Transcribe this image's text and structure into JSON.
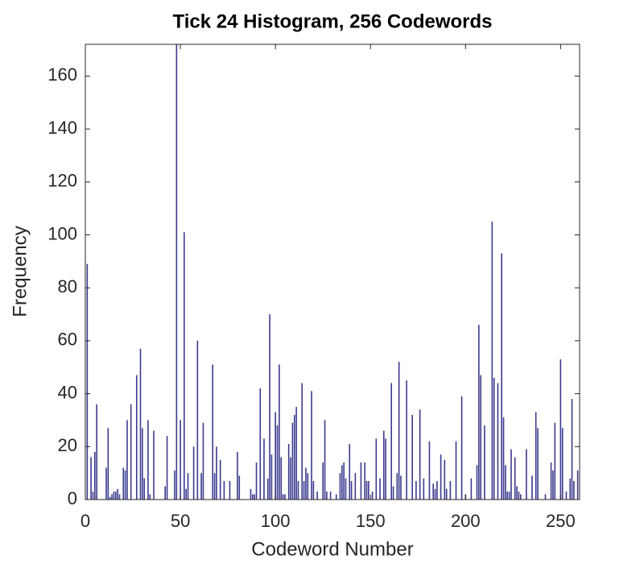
{
  "chart_data": {
    "type": "bar",
    "title": "Tick 24 Histogram, 256 Codewords",
    "xlabel": "Codeword Number",
    "ylabel": "Frequency",
    "color": "#3b3a8e",
    "xlim": [
      0,
      260
    ],
    "ylim": [
      0,
      172
    ],
    "xticks": [
      0,
      50,
      100,
      150,
      200,
      250
    ],
    "yticks": [
      0,
      20,
      40,
      60,
      80,
      100,
      120,
      140,
      160
    ],
    "x": [
      1,
      3,
      4,
      5,
      6,
      11,
      12,
      13,
      14,
      15,
      16,
      17,
      18,
      20,
      21,
      22,
      24,
      27,
      29,
      30,
      31,
      33,
      34,
      36,
      42,
      43,
      47,
      48,
      50,
      52,
      53,
      54,
      57,
      59,
      61,
      62,
      67,
      68,
      69,
      71,
      73,
      76,
      80,
      81,
      87,
      88,
      89,
      90,
      92,
      94,
      96,
      97,
      98,
      100,
      101,
      102,
      103,
      104,
      105,
      107,
      108,
      109,
      110,
      111,
      112,
      114,
      115,
      116,
      117,
      119,
      120,
      122,
      125,
      126,
      127,
      129,
      132,
      134,
      135,
      136,
      137,
      139,
      140,
      142,
      145,
      147,
      148,
      149,
      151,
      153,
      155,
      157,
      158,
      161,
      162,
      164,
      165,
      166,
      169,
      172,
      174,
      176,
      178,
      181,
      183,
      184,
      185,
      187,
      189,
      190,
      192,
      195,
      198,
      200,
      203,
      206,
      207,
      208,
      210,
      214,
      215,
      217,
      219,
      220,
      221,
      222,
      223,
      224,
      226,
      227,
      228,
      229,
      232,
      235,
      237,
      238,
      242,
      245,
      246,
      247,
      250,
      251,
      253,
      255,
      256,
      257,
      259
    ],
    "values": [
      89,
      16,
      3,
      18,
      36,
      12,
      27,
      1,
      2,
      3,
      3,
      4,
      2,
      12,
      11,
      30,
      36,
      47,
      57,
      27,
      8,
      30,
      2,
      26,
      5,
      24,
      11,
      172,
      30,
      101,
      4,
      10,
      20,
      60,
      10,
      29,
      51,
      10,
      20,
      15,
      7,
      7,
      18,
      9,
      4,
      2,
      2,
      14,
      42,
      23,
      8,
      70,
      17,
      33,
      28,
      51,
      16,
      2,
      2,
      21,
      16,
      29,
      32,
      35,
      7,
      44,
      7,
      12,
      10,
      41,
      7,
      3,
      14,
      30,
      3,
      3,
      2,
      10,
      13,
      14,
      8,
      21,
      7,
      10,
      14,
      14,
      7,
      7,
      3,
      23,
      8,
      26,
      23,
      44,
      5,
      10,
      52,
      9,
      45,
      32,
      7,
      34,
      8,
      22,
      6,
      4,
      7,
      17,
      15,
      4,
      7,
      22,
      39,
      2,
      8,
      13,
      66,
      47,
      28,
      105,
      46,
      44,
      93,
      31,
      13,
      3,
      3,
      19,
      16,
      5,
      3,
      2,
      19,
      9,
      33,
      27,
      2,
      14,
      11,
      29,
      53,
      27,
      3,
      8,
      38,
      7,
      11
    ]
  }
}
